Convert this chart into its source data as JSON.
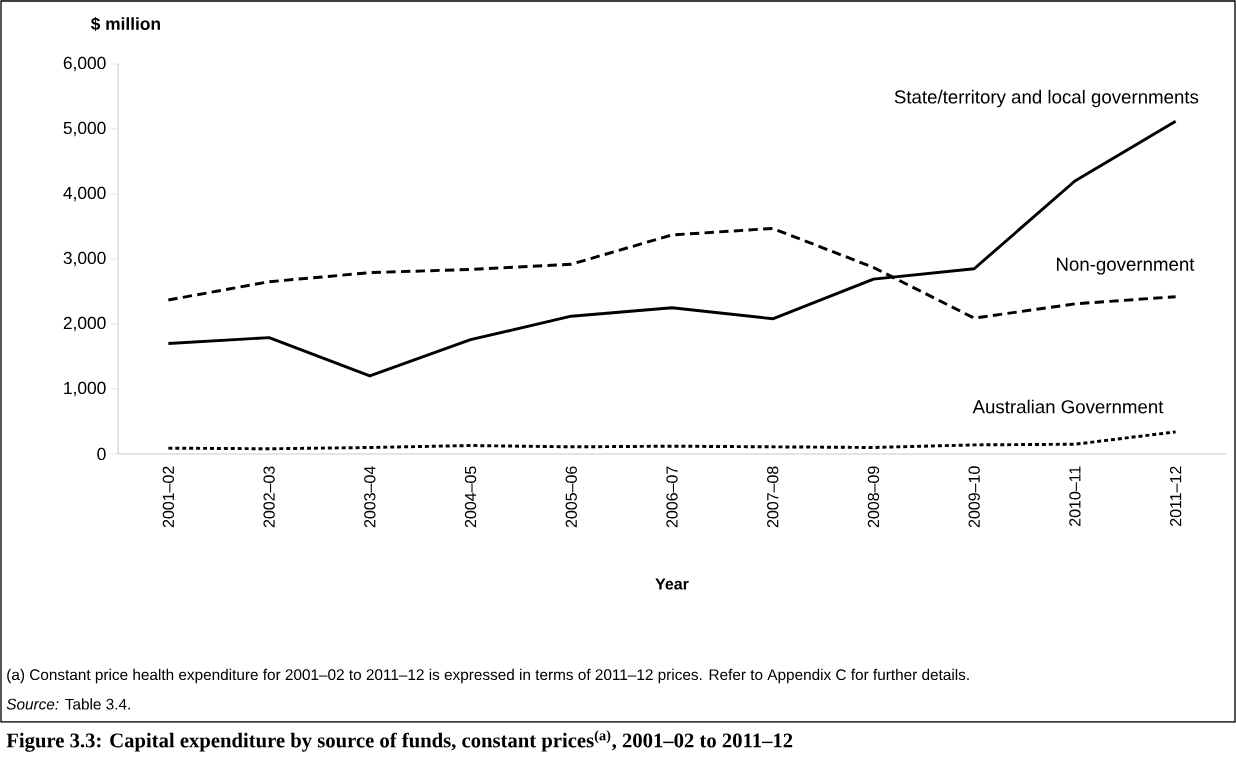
{
  "chart_data": {
    "type": "line",
    "title": "Figure 3.3: Capital expenditure by source of funds, constant prices$^{(a)}$, 2001–02 to 2011–12",
    "ylabel": "$ million",
    "xlabel": "Year",
    "categories": [
      "2001–02",
      "2002–03",
      "2003–04",
      "2004–05",
      "2005–06",
      "2006–07",
      "2007–08",
      "2008–09",
      "2009–10",
      "2010–11",
      "2011–12"
    ],
    "series": [
      {
        "name": "State/territory and local governments",
        "color": "#000000",
        "line_style": "solid",
        "values": [
          1700,
          1790,
          1200,
          1760,
          2120,
          2250,
          2080,
          2690,
          2850,
          4200,
          5120
        ]
      },
      {
        "name": "Non-government",
        "color": "#000000",
        "line_style": "dashed",
        "values": [
          2370,
          2650,
          2790,
          2840,
          2920,
          3370,
          3470,
          2870,
          2090,
          2310,
          2420
        ]
      },
      {
        "name": "Australian Government",
        "color": "#000000",
        "line_style": "dotted",
        "values": [
          90,
          80,
          100,
          130,
          110,
          120,
          110,
          100,
          140,
          150,
          340
        ]
      }
    ],
    "ylim": [
      0,
      6000
    ],
    "yticks": [
      0,
      {
        "value": 1000,
        "label": "1,000"
      },
      {
        "value": 2000,
        "label": "2,000"
      },
      {
        "value": 3000,
        "label": "3,000"
      },
      {
        "value": 4000,
        "label": "4,000"
      },
      {
        "value": 5000,
        "label": "5,000"
      },
      {
        "value": 6000,
        "label": "6,000"
      }
    ],
    "grid": false,
    "legend": false,
    "marker": "none",
    "annotations": [
      "(a)    Constant price health expenditure for 2001–02 to 2011–12 is expressed in terms of 2011–12 prices. Refer to Appendix C for further details.",
      "*Source:* Table 3.4."
    ]
  }
}
